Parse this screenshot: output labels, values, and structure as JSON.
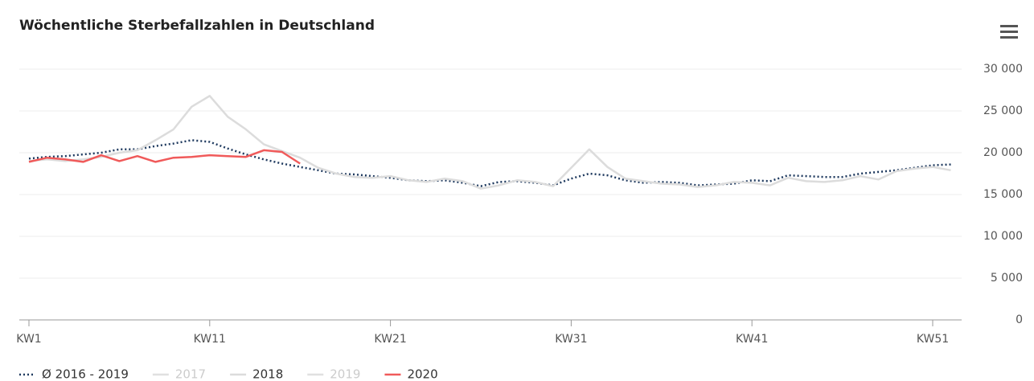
{
  "chart_data": {
    "type": "line",
    "title": "Wöchentliche Sterbefallzahlen in Deutschland",
    "categories": [
      "KW1",
      null,
      null,
      null,
      null,
      null,
      null,
      null,
      null,
      null,
      "KW11",
      null,
      null,
      null,
      null,
      null,
      null,
      null,
      null,
      null,
      "KW21",
      null,
      null,
      null,
      null,
      null,
      null,
      null,
      null,
      null,
      "KW31",
      null,
      null,
      null,
      null,
      null,
      null,
      null,
      null,
      null,
      "KW41",
      null,
      null,
      null,
      null,
      null,
      null,
      null,
      null,
      null,
      "KW51",
      null
    ],
    "series": [
      {
        "name": "Ø 2016 - 2019",
        "color": "#1f3a5f",
        "dash": "dotted",
        "values": [
          19300,
          19500,
          19600,
          19800,
          20000,
          20400,
          20400,
          20800,
          21100,
          21500,
          21300,
          20500,
          19800,
          19200,
          18700,
          18300,
          17900,
          17500,
          17400,
          17200,
          17000,
          16700,
          16600,
          16700,
          16400,
          16000,
          16500,
          16600,
          16400,
          16100,
          16900,
          17500,
          17300,
          16700,
          16400,
          16500,
          16400,
          16100,
          16200,
          16300,
          16700,
          16600,
          17300,
          17200,
          17100,
          17100,
          17500,
          17700,
          17900,
          18200,
          18500,
          18600
        ]
      },
      {
        "name": "2017",
        "color": "#cccccc",
        "visible": false
      },
      {
        "name": "2018",
        "color": "#dcdcdc",
        "values": [
          19000,
          19200,
          19000,
          19200,
          19500,
          20000,
          20300,
          21500,
          22800,
          25500,
          26800,
          24300,
          22800,
          21000,
          20200,
          19400,
          18200,
          17500,
          17100,
          17000,
          17200,
          16700,
          16500,
          16900,
          16600,
          15700,
          16100,
          16700,
          16500,
          16000,
          18200,
          20400,
          18300,
          16900,
          16600,
          16300,
          16200,
          15900,
          16100,
          16500,
          16400,
          16100,
          17000,
          16600,
          16500,
          16700,
          17200,
          16800,
          17800,
          18100,
          18300,
          17900
        ]
      },
      {
        "name": "2019",
        "color": "#cccccc",
        "visible": false
      },
      {
        "name": "2020",
        "color": "#f05a5a",
        "values": [
          18900,
          19400,
          19200,
          18900,
          19700,
          19000,
          19600,
          18900,
          19400,
          19500,
          19700,
          19600,
          19500,
          20300,
          20100,
          18700,
          null,
          null,
          null,
          null,
          null,
          null,
          null,
          null,
          null,
          null,
          null,
          null,
          null,
          null,
          null,
          null,
          null,
          null,
          null,
          null,
          null,
          null,
          null,
          null,
          null,
          null,
          null,
          null,
          null,
          null,
          null,
          null,
          null,
          null,
          null,
          null
        ]
      }
    ],
    "ylim": [
      0,
      30000
    ],
    "yticks": [
      0,
      {
        "value": 5000,
        "label": "5 000"
      },
      {
        "value": 10000,
        "label": "10 000"
      },
      {
        "value": 15000,
        "label": "15 000"
      },
      {
        "value": 20000,
        "label": "20 000"
      },
      {
        "value": 25000,
        "label": "25 000"
      },
      {
        "value": 30000,
        "label": "30 000"
      }
    ],
    "grid": true,
    "legend": "bottom"
  }
}
